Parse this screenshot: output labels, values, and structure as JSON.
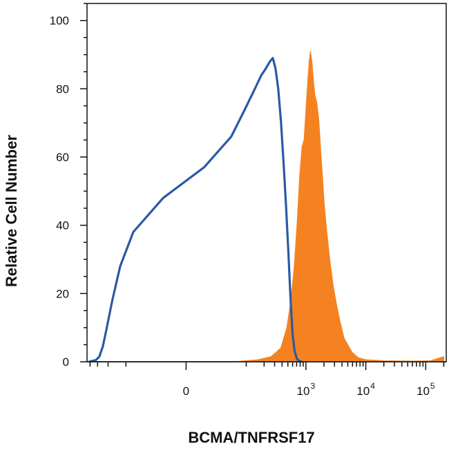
{
  "chart_data": {
    "type": "area",
    "title": "",
    "xlabel": "BCMA/TNFRSF17",
    "ylabel": "Relative Cell Number",
    "x_scale": "biexponential",
    "xlim": [
      -450,
      220000
    ],
    "ylim": [
      0,
      105
    ],
    "grid": false,
    "legend": "none",
    "x_ticks": [
      {
        "value": 0,
        "base": "0",
        "exp": ""
      },
      {
        "value": 1000,
        "base": "10",
        "exp": "3"
      },
      {
        "value": 10000,
        "base": "10",
        "exp": "4"
      },
      {
        "value": 100000,
        "base": "10",
        "exp": "5"
      }
    ],
    "y_ticks": [
      0,
      20,
      40,
      60,
      80,
      100
    ],
    "series": [
      {
        "style": "filled",
        "color": "#f58220",
        "points": [
          [
            60,
            0
          ],
          [
            160,
            0.6
          ],
          [
            260,
            1.5
          ],
          [
            380,
            4
          ],
          [
            480,
            10
          ],
          [
            560,
            18
          ],
          [
            640,
            28
          ],
          [
            720,
            42
          ],
          [
            790,
            55
          ],
          [
            860,
            63
          ],
          [
            930,
            65
          ],
          [
            1000,
            74
          ],
          [
            1070,
            82
          ],
          [
            1130,
            88
          ],
          [
            1190,
            91
          ],
          [
            1260,
            88
          ],
          [
            1340,
            82
          ],
          [
            1420,
            78
          ],
          [
            1520,
            76
          ],
          [
            1640,
            71
          ],
          [
            1780,
            61
          ],
          [
            1900,
            54
          ],
          [
            2030,
            46
          ],
          [
            2240,
            38
          ],
          [
            2500,
            30
          ],
          [
            2870,
            22
          ],
          [
            3230,
            17
          ],
          [
            3700,
            12
          ],
          [
            4320,
            7
          ],
          [
            5000,
            5
          ],
          [
            5900,
            2.8
          ],
          [
            7500,
            1.2
          ],
          [
            10000,
            0.6
          ],
          [
            20000,
            0.3
          ],
          [
            60000,
            0.2
          ],
          [
            120000,
            0.3
          ],
          [
            160000,
            1
          ],
          [
            200000,
            1.5
          ]
        ]
      },
      {
        "style": "outline",
        "color": "#2b59a4",
        "points": [
          [
            -420,
            0
          ],
          [
            -320,
            0.5
          ],
          [
            -280,
            1.5
          ],
          [
            -245,
            4.5
          ],
          [
            -210,
            10
          ],
          [
            -170,
            18
          ],
          [
            -125,
            28
          ],
          [
            -75,
            38
          ],
          [
            -20,
            48
          ],
          [
            15,
            57
          ],
          [
            55,
            66
          ],
          [
            95,
            74
          ],
          [
            140,
            80
          ],
          [
            180,
            84
          ],
          [
            215,
            86
          ],
          [
            250,
            88
          ],
          [
            280,
            89
          ],
          [
            310,
            86
          ],
          [
            345,
            80
          ],
          [
            385,
            70
          ],
          [
            425,
            58
          ],
          [
            465,
            46
          ],
          [
            510,
            32
          ],
          [
            555,
            18
          ],
          [
            600,
            8
          ],
          [
            650,
            3
          ],
          [
            710,
            0.8
          ],
          [
            780,
            0.2
          ],
          [
            860,
            0
          ]
        ]
      }
    ]
  }
}
